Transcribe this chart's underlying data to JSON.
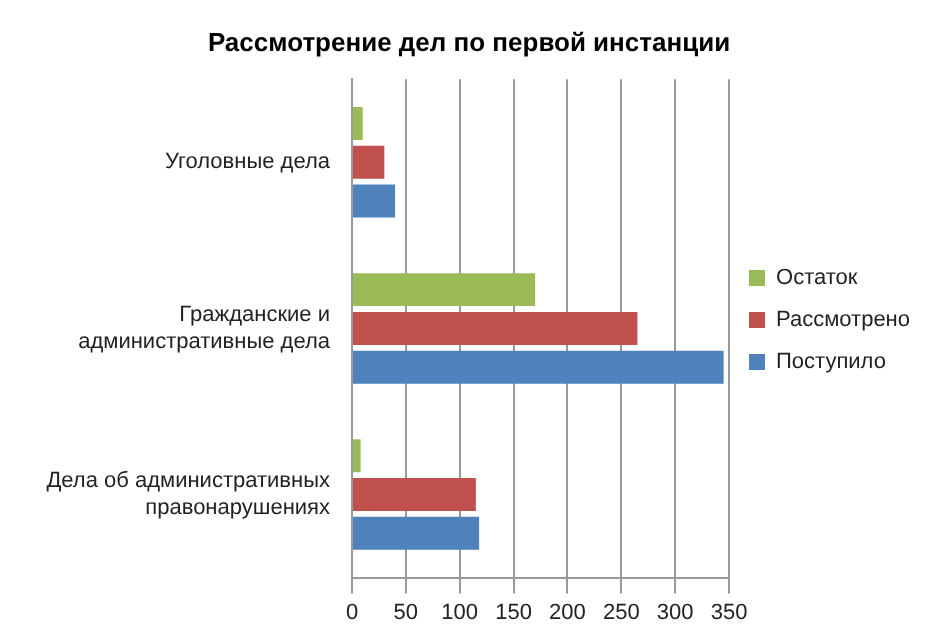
{
  "chart_data": {
    "type": "bar",
    "orientation": "horizontal",
    "title": "Рассмотрение дел по первой инстанции",
    "categories": [
      "Уголовные дела",
      "Гражданские и административные дела",
      "Дела об административных правонарушениях"
    ],
    "series": [
      {
        "name": "Остаток",
        "color": "#9bbb59",
        "values": [
          10,
          170,
          8
        ]
      },
      {
        "name": "Рассмотрено",
        "color": "#c0504d",
        "values": [
          30,
          265,
          115
        ]
      },
      {
        "name": "Поступило",
        "color": "#4f81bd",
        "values": [
          40,
          345,
          118
        ]
      }
    ],
    "xlim": [
      0,
      350
    ],
    "xticks": [
      0,
      50,
      100,
      150,
      200,
      250,
      300,
      350
    ],
    "grid": "x",
    "legend": "right"
  }
}
